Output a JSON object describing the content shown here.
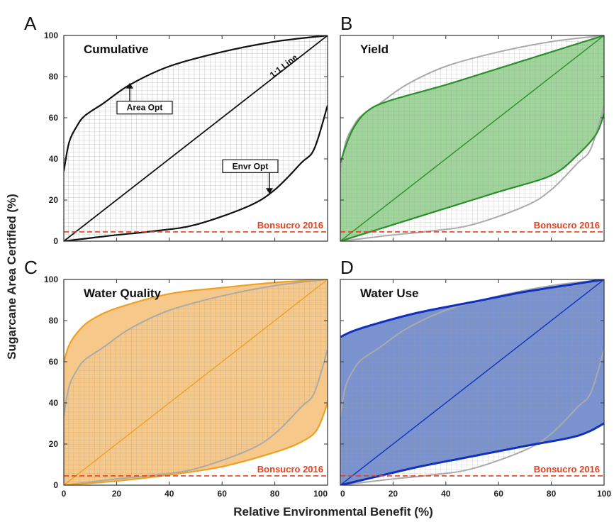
{
  "figure": {
    "ylabel": "Sugarcane Area Certified (%)",
    "xlabel": "Relative Environmental Benefit (%)"
  },
  "chart_data": [
    {
      "panel": "A",
      "title": "Cumulative",
      "type": "area",
      "xlim": [
        0,
        100
      ],
      "ylim": [
        0,
        100
      ],
      "xticks": [
        0,
        20,
        40,
        60,
        80,
        100
      ],
      "yticks": [
        0,
        20,
        40,
        60,
        80,
        100
      ],
      "grid": "hatch-in-envelope",
      "fill_color": "#ffffff",
      "line_color": "#111111",
      "upper_series": {
        "x": [
          0,
          2,
          5,
          8,
          15,
          25,
          40,
          60,
          80,
          100
        ],
        "y": [
          34,
          48,
          56,
          61,
          67,
          76,
          85,
          92,
          97,
          100
        ]
      },
      "lower_series": {
        "x": [
          0,
          10,
          20,
          35,
          50,
          70,
          80,
          90,
          95,
          100
        ],
        "y": [
          0,
          1.5,
          3,
          5,
          8,
          17,
          25,
          38,
          45,
          66
        ]
      },
      "reference_line": {
        "name": "1:1 Line",
        "x": [
          0,
          100
        ],
        "y": [
          0,
          100
        ]
      },
      "baseline": {
        "name": "Bonsucro 2016",
        "y": 4.5,
        "color": "#e8401c"
      },
      "annotations": [
        {
          "text": "Area Opt",
          "x": 25,
          "y": 77
        },
        {
          "text": "Envr Opt",
          "x": 75,
          "y": 23
        }
      ]
    },
    {
      "panel": "B",
      "title": "Yield",
      "type": "area",
      "xlim": [
        0,
        100
      ],
      "ylim": [
        0,
        100
      ],
      "xticks": [
        0,
        20,
        40,
        60,
        80,
        100
      ],
      "yticks": [
        0,
        20,
        40,
        60,
        80,
        100
      ],
      "fill_color": "#9fd49a",
      "line_color": "#2a8f2a",
      "upper_series": {
        "x": [
          0,
          2,
          5,
          10,
          18,
          40,
          60,
          80,
          100
        ],
        "y": [
          38,
          46,
          55,
          63,
          68,
          76,
          84,
          92,
          100
        ]
      },
      "lower_series": {
        "x": [
          0,
          20,
          40,
          60,
          80,
          90,
          97,
          100
        ],
        "y": [
          0,
          8,
          16,
          24,
          32,
          42,
          52,
          62
        ]
      },
      "reference_line": {
        "name": "",
        "x": [
          0,
          100
        ],
        "y": [
          0,
          100
        ]
      },
      "baseline": {
        "name": "Bonsucro 2016",
        "y": 4.5,
        "color": "#e8401c"
      }
    },
    {
      "panel": "C",
      "title": "Water Quality",
      "type": "area",
      "xlim": [
        0,
        100
      ],
      "ylim": [
        0,
        100
      ],
      "xticks": [
        0,
        20,
        40,
        60,
        80,
        100
      ],
      "yticks": [
        0,
        20,
        40,
        60,
        80,
        100
      ],
      "fill_color": "#f6c98a",
      "line_color": "#f0a020",
      "upper_series": {
        "x": [
          0,
          2,
          5,
          10,
          20,
          40,
          60,
          80,
          100
        ],
        "y": [
          60,
          68,
          74,
          80,
          86,
          93,
          96,
          98.5,
          100
        ]
      },
      "lower_series": {
        "x": [
          0,
          20,
          40,
          60,
          80,
          90,
          96,
          100
        ],
        "y": [
          0,
          2,
          5,
          9,
          16,
          21,
          27,
          40
        ]
      },
      "reference_line": {
        "name": "",
        "x": [
          0,
          100
        ],
        "y": [
          0,
          100
        ]
      },
      "baseline": {
        "name": "Bonsucro 2016",
        "y": 4.5,
        "color": "#e8401c"
      }
    },
    {
      "panel": "D",
      "title": "Water Use",
      "type": "area",
      "xlim": [
        0,
        100
      ],
      "ylim": [
        0,
        100
      ],
      "xticks": [
        0,
        20,
        40,
        60,
        80,
        100
      ],
      "yticks": [
        0,
        20,
        40,
        60,
        80,
        100
      ],
      "fill_color": "#7a93cf",
      "line_color": "#1030c0",
      "upper_series": {
        "x": [
          0,
          5,
          15,
          30,
          50,
          70,
          90,
          100
        ],
        "y": [
          72,
          75,
          79,
          84,
          89,
          94,
          98,
          100
        ]
      },
      "lower_series": {
        "x": [
          0,
          10,
          30,
          50,
          70,
          90,
          100
        ],
        "y": [
          0,
          3,
          9,
          14,
          19,
          24,
          30
        ]
      },
      "reference_line": {
        "name": "",
        "x": [
          0,
          100
        ],
        "y": [
          0,
          100
        ]
      },
      "baseline": {
        "name": "Bonsucro 2016",
        "y": 4.5,
        "color": "#e8401c"
      }
    }
  ]
}
